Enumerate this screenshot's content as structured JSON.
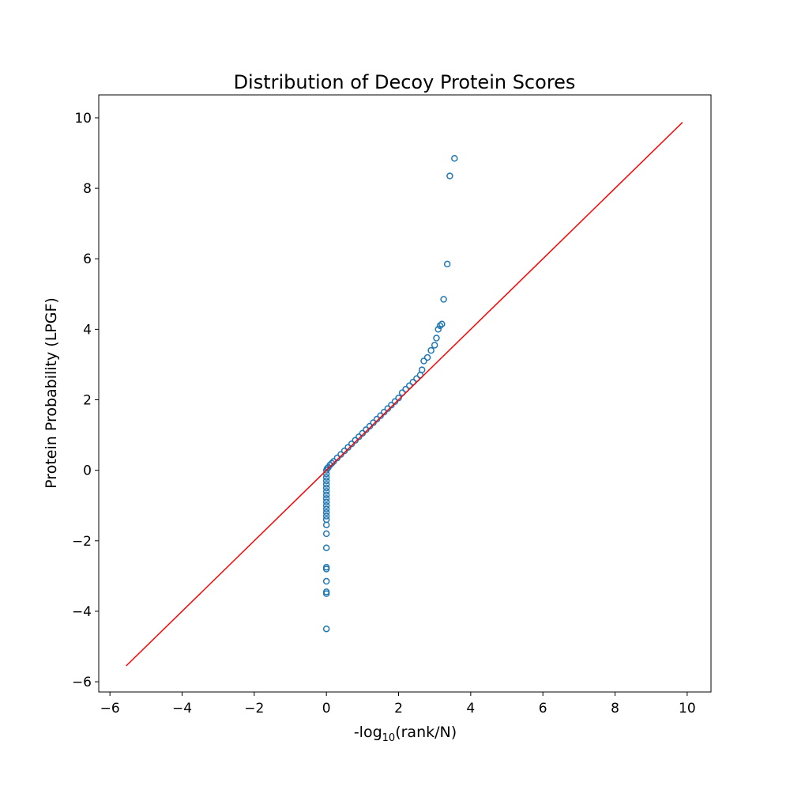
{
  "chart_data": {
    "type": "scatter",
    "title": "Distribution of Decoy Protein Scores",
    "xlabel": {
      "prefix": "-log",
      "sub": "10",
      "suffix": "(rank/N)"
    },
    "ylabel": "Protein Probability (LPGF)",
    "xlim": [
      -6.31,
      10.66
    ],
    "ylim": [
      -6.29,
      10.65
    ],
    "xticks": [
      {
        "value": -6,
        "label": "−6"
      },
      {
        "value": -4,
        "label": "−4"
      },
      {
        "value": -2,
        "label": "−2"
      },
      0,
      2,
      4,
      6,
      8,
      10
    ],
    "yticks": [
      {
        "value": -6,
        "label": "−6"
      },
      {
        "value": -4,
        "label": "−4"
      },
      {
        "value": -2,
        "label": "−2"
      },
      0,
      2,
      4,
      6,
      8,
      10
    ],
    "grid": false,
    "series": [
      {
        "type": "scatter",
        "color": "#1f77b4",
        "x": [
          0.02,
          0.05,
          0.1,
          0.15,
          0.2,
          0.3,
          0.4,
          0.5,
          0.6,
          0.7,
          0.8,
          0.9,
          1.0,
          1.1,
          1.2,
          1.3,
          1.4,
          1.5,
          1.6,
          1.7,
          1.8,
          1.9,
          2.0,
          2.1,
          2.2,
          2.3,
          2.4,
          2.5,
          2.6,
          2.65,
          0,
          0,
          0,
          0,
          0,
          0,
          0,
          0,
          0,
          0,
          0,
          0,
          0,
          0,
          0,
          0,
          0,
          0,
          0,
          0,
          0,
          0,
          0,
          0,
          2.7,
          2.8,
          2.9,
          3.0,
          3.05,
          3.1,
          3.15,
          3.2,
          3.25,
          3.35,
          3.42,
          3.55
        ],
        "values": [
          0.05,
          0.08,
          0.15,
          0.2,
          0.25,
          0.35,
          0.45,
          0.55,
          0.65,
          0.75,
          0.85,
          0.95,
          1.05,
          1.15,
          1.25,
          1.35,
          1.45,
          1.55,
          1.65,
          1.75,
          1.85,
          1.95,
          2.05,
          2.2,
          2.3,
          2.4,
          2.5,
          2.6,
          2.7,
          2.85,
          0,
          -0.1,
          -0.2,
          -0.3,
          -0.4,
          -0.5,
          -0.6,
          -0.7,
          -0.8,
          -0.9,
          -1.0,
          -1.1,
          -1.2,
          -1.3,
          -1.4,
          -1.55,
          -1.8,
          -2.2,
          -2.75,
          -2.8,
          -3.15,
          -3.45,
          -3.5,
          -4.5,
          3.1,
          3.2,
          3.4,
          3.55,
          3.75,
          4.0,
          4.1,
          4.15,
          4.85,
          5.85,
          8.35,
          8.85
        ]
      },
      {
        "type": "line",
        "color": "#ff0000",
        "x": [
          -5.55,
          9.87
        ],
        "values": [
          -5.55,
          9.87
        ]
      }
    ]
  }
}
